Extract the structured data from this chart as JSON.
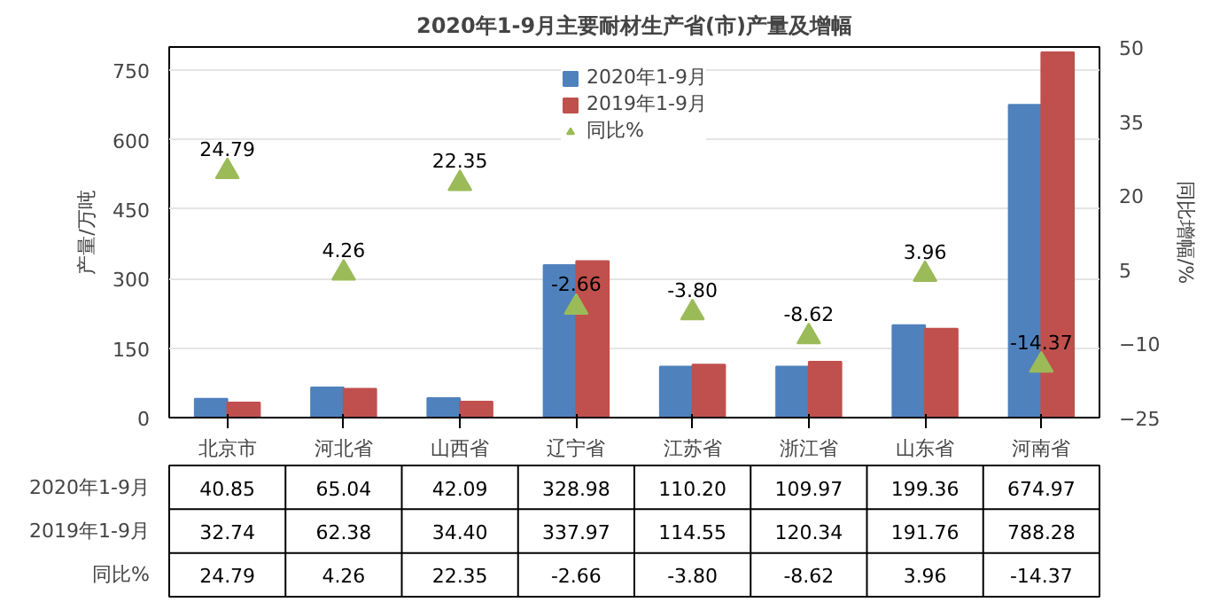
{
  "chart_data": {
    "type": "bar",
    "title": "2020年1-9月主要耐材生产省(市)产量及增幅",
    "ylabel": "产量/万吨",
    "y2label": "同比增幅/%",
    "categories": [
      "北京市",
      "河北省",
      "山西省",
      "辽宁省",
      "江苏省",
      "浙江省",
      "山东省",
      "河南省"
    ],
    "series": [
      {
        "name": "2020年1-9月",
        "color": "#4f81bd",
        "values": [
          40.85,
          65.04,
          42.09,
          328.98,
          110.2,
          109.97,
          199.36,
          674.97
        ],
        "value_labels": [
          "40.85",
          "65.04",
          "42.09",
          "328.98",
          "110.20",
          "109.97",
          "199.36",
          "674.97"
        ]
      },
      {
        "name": "2019年1-9月",
        "color": "#c0504d",
        "values": [
          32.74,
          62.38,
          34.4,
          337.97,
          114.55,
          120.34,
          191.76,
          788.28
        ],
        "value_labels": [
          "32.74",
          "62.38",
          "34.40",
          "337.97",
          "114.55",
          "120.34",
          "191.76",
          "788.28"
        ]
      },
      {
        "name": "同比%",
        "type": "scatter",
        "axis": "y2",
        "marker": "triangle",
        "color": "#9bbb59",
        "values": [
          24.79,
          4.26,
          22.35,
          -2.66,
          -3.8,
          -8.62,
          3.96,
          -14.37
        ],
        "value_labels": [
          "24.79",
          "4.26",
          "22.35",
          "-2.66",
          "-3.80",
          "-8.62",
          "3.96",
          "-14.37"
        ]
      }
    ],
    "ylim": [
      0,
      800
    ],
    "yticks": [
      0,
      150,
      300,
      450,
      600,
      750
    ],
    "y2lim": [
      -25,
      50
    ],
    "y2ticks": [
      -25,
      -10,
      5,
      20,
      35,
      50
    ],
    "grid": "y",
    "legend": "top"
  }
}
